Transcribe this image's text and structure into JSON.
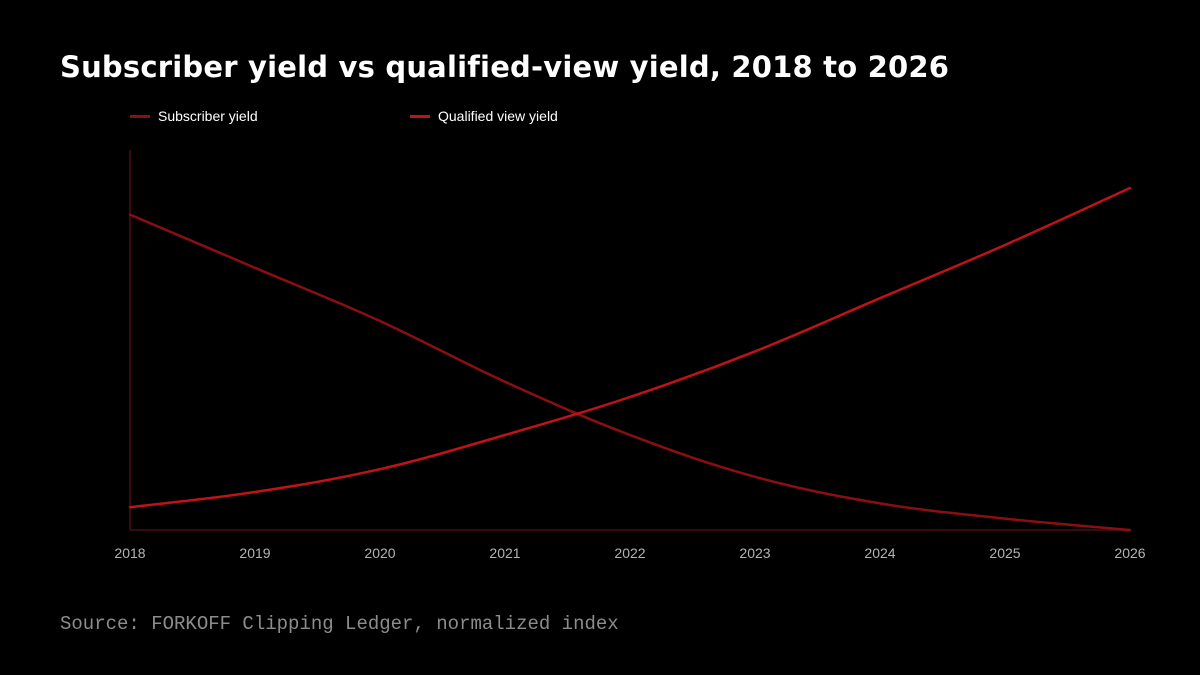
{
  "title": "Subscriber yield vs qualified-view yield, 2018 to 2026",
  "source": "Source: FORKOFF Clipping Ledger, normalized index",
  "colors": {
    "background": "#000000",
    "subscriber_series": "#8b0f12",
    "qualified_series": "#c1121a",
    "axis": "#4a1012"
  },
  "chart_data": {
    "type": "line",
    "title": "Subscriber yield vs qualified-view yield, 2018 to 2026",
    "xlabel": "",
    "ylabel": "",
    "categories": [
      "2018",
      "2019",
      "2020",
      "2021",
      "2022",
      "2023",
      "2024",
      "2025",
      "2026"
    ],
    "ylim": [
      0,
      100
    ],
    "grid": false,
    "legend_position": "top-left",
    "series": [
      {
        "name": "Subscriber yield",
        "color": "#8b0f12",
        "values": [
          83,
          69,
          55,
          39,
          25,
          14,
          7,
          3,
          0
        ]
      },
      {
        "name": "Qualified view yield",
        "color": "#c1121a",
        "values": [
          6,
          10,
          16,
          25,
          35,
          47,
          61,
          75,
          90
        ]
      }
    ]
  }
}
